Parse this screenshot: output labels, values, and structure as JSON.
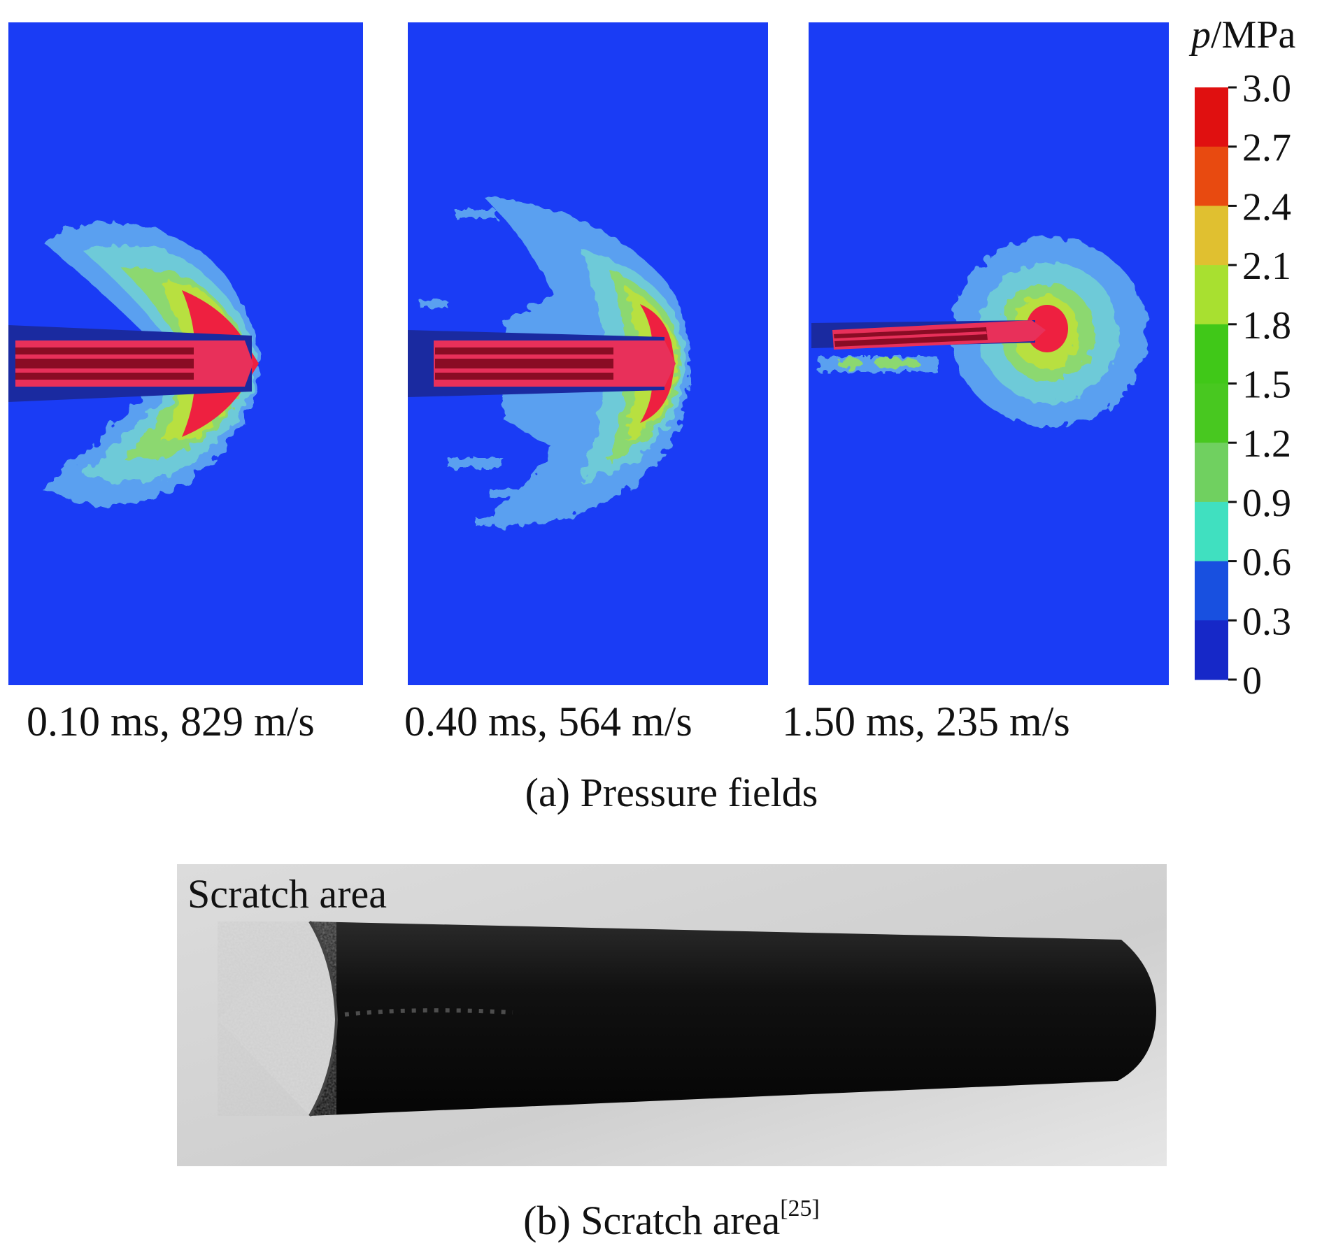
{
  "panel_a": {
    "subplots": [
      {
        "label": "0.10 ms, 829 m/s"
      },
      {
        "label": "0.40 ms, 564 m/s"
      },
      {
        "label": "1.50 ms, 235 m/s"
      }
    ],
    "caption": "(a) Pressure fields",
    "colorbar": {
      "title_var": "p",
      "title_unit": "/MPa",
      "ticks": [
        "3.0",
        "2.7",
        "2.4",
        "2.1",
        "1.8",
        "1.5",
        "1.2",
        "0.9",
        "0.6",
        "0.3",
        "0"
      ],
      "colors_top_to_bottom": [
        "#e01010",
        "#e84a10",
        "#e0c030",
        "#a8e030",
        "#40c818",
        "#48c820",
        "#70d060",
        "#40e0c0",
        "#1850e0",
        "#1628c8"
      ]
    },
    "colors": {
      "background": "#1a3cf5",
      "projectile": "#e8305a",
      "projectile_core": "#8a0c24"
    }
  },
  "panel_b": {
    "photo_label": "Scratch area",
    "caption": "(b) Scratch area",
    "caption_ref": "[25]"
  }
}
